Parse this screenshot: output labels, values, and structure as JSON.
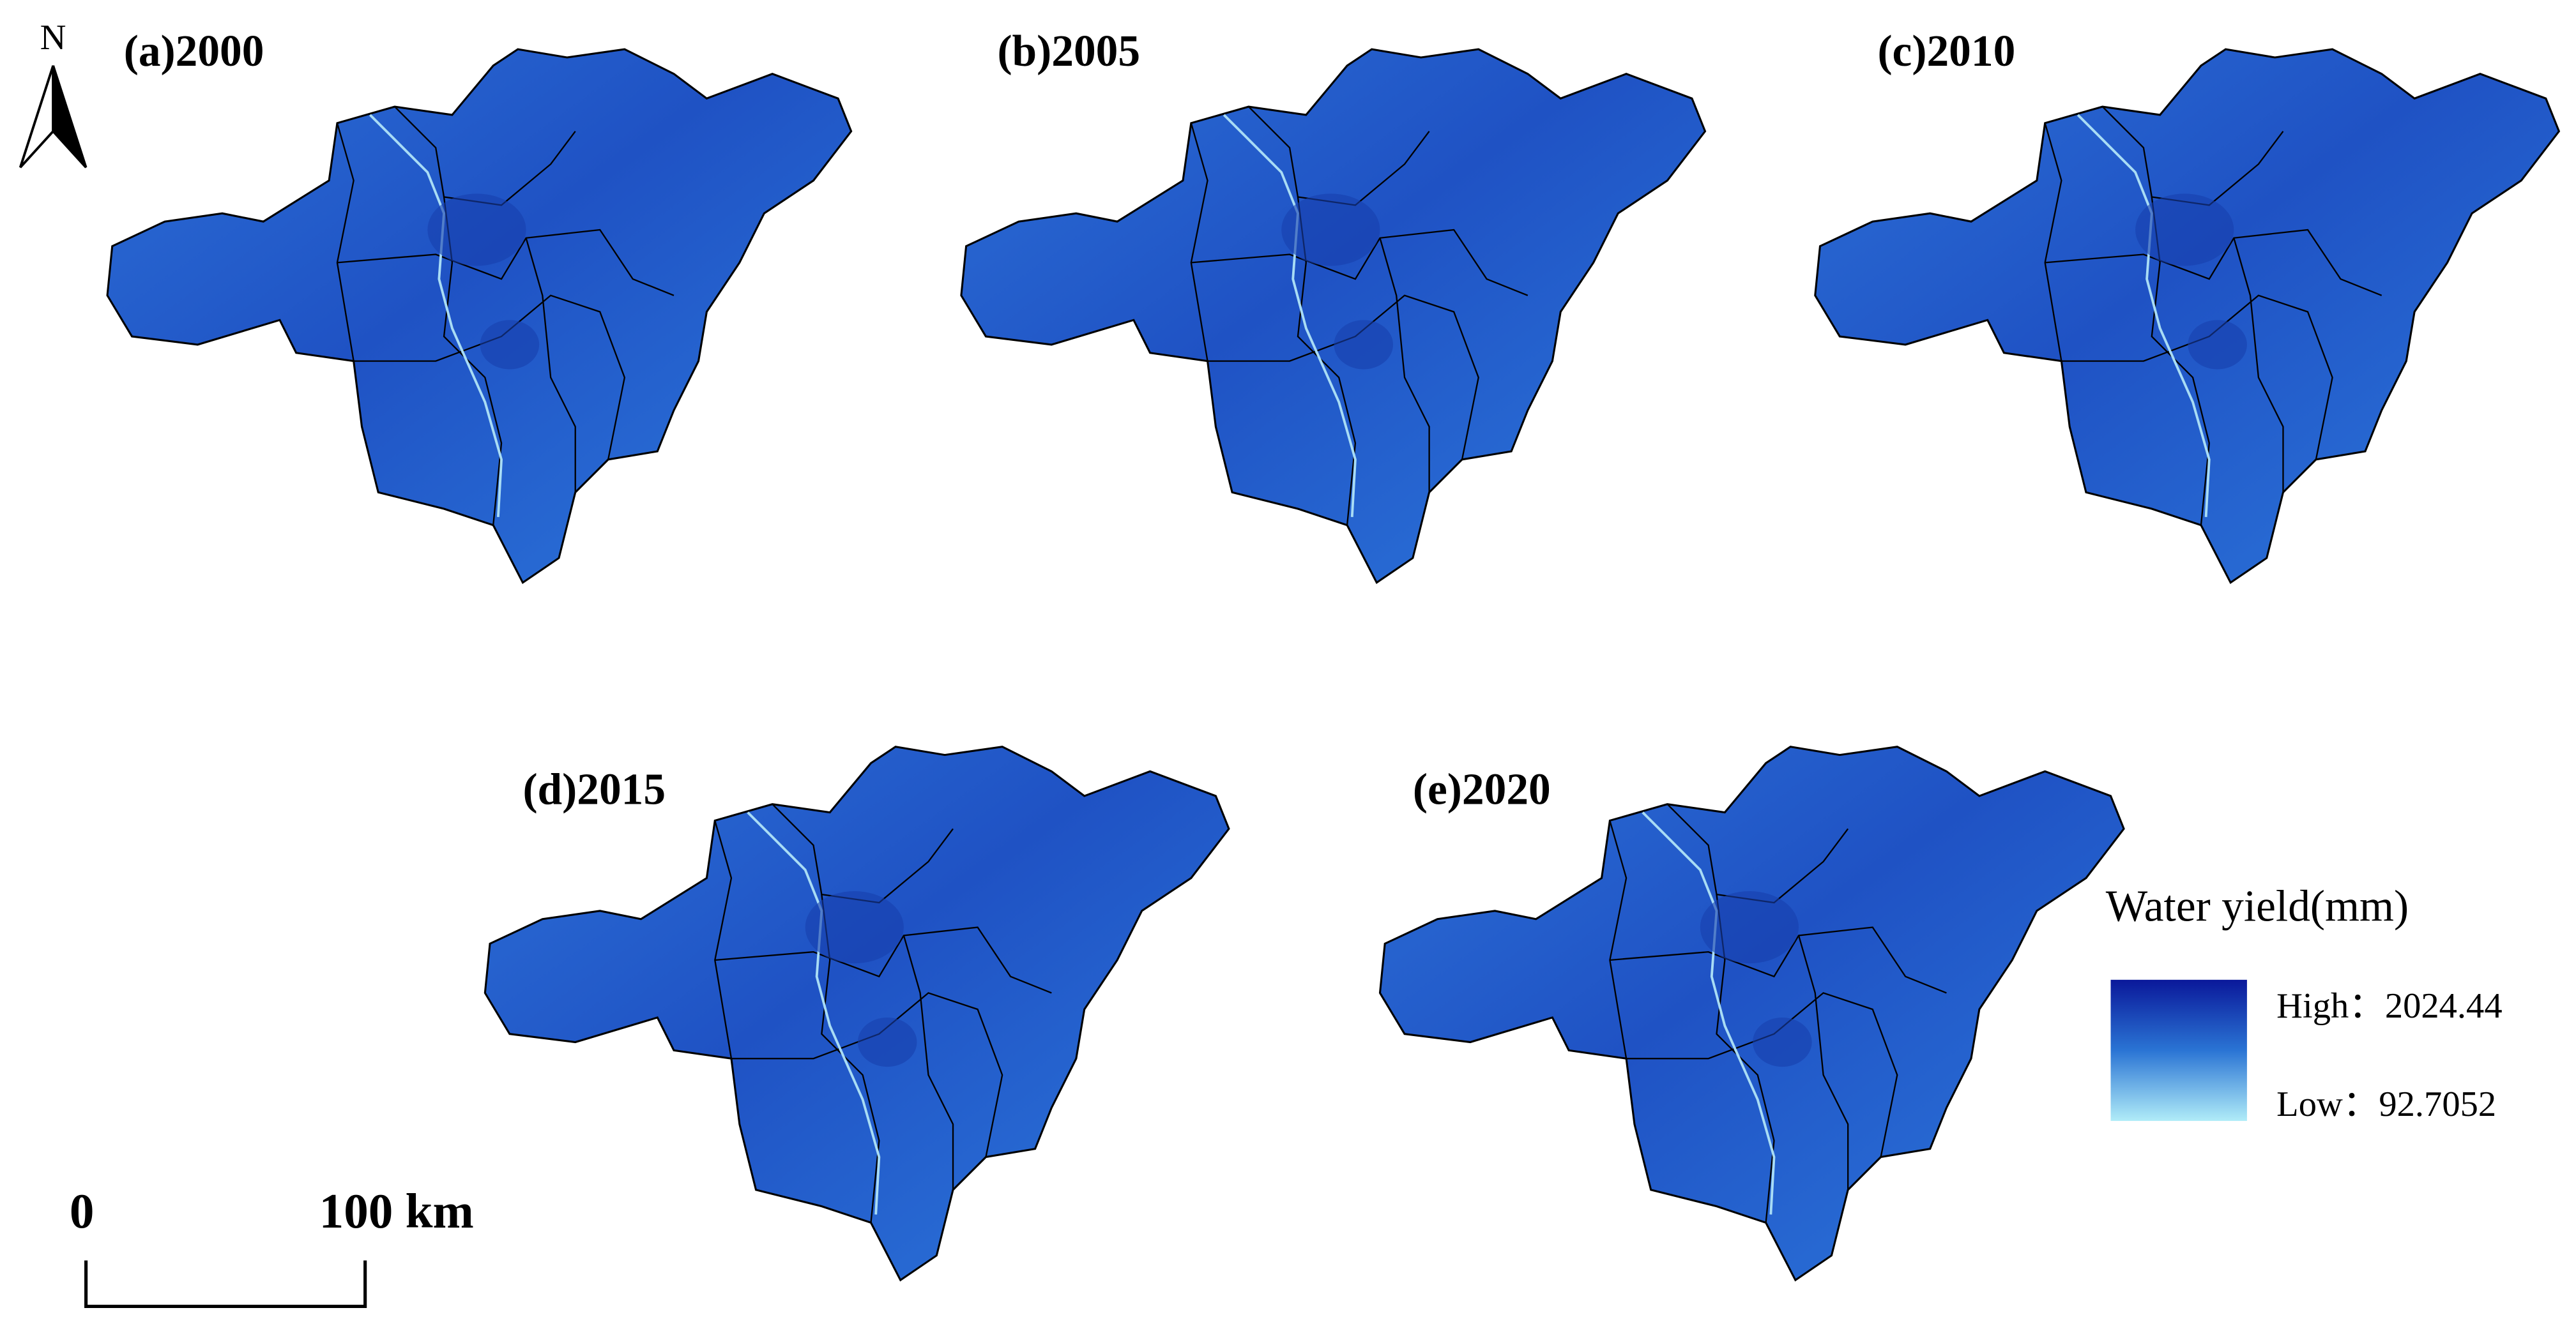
{
  "panels": [
    {
      "label": "(a)2000"
    },
    {
      "label": "(b)2005"
    },
    {
      "label": "(c)2010"
    },
    {
      "label": "(d)2015"
    },
    {
      "label": "(e)2020"
    }
  ],
  "north": "N",
  "scale_bar": {
    "start": "0",
    "end": "100 km"
  },
  "legend": {
    "title": "Water yield(mm)",
    "high": "High：2024.44",
    "low": "Low：92.7052"
  }
}
